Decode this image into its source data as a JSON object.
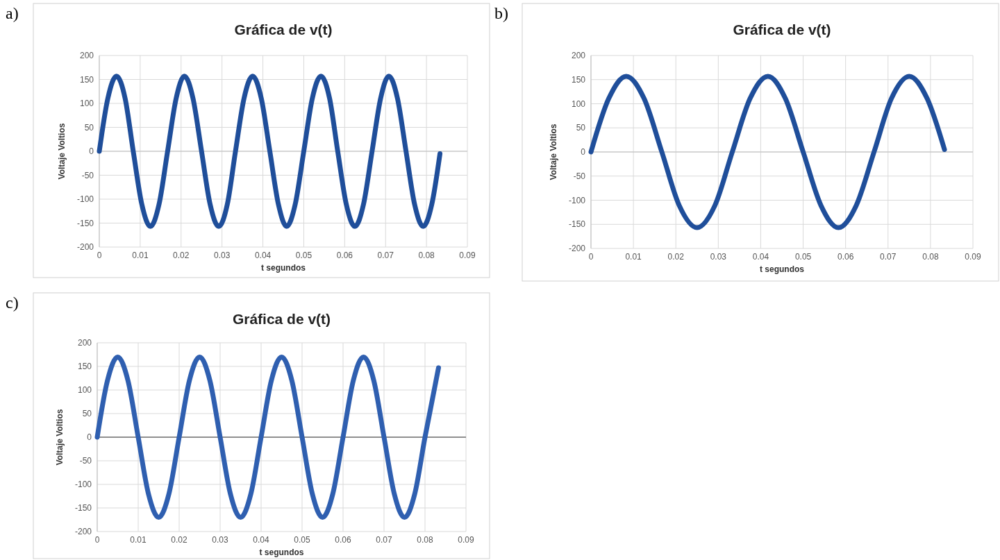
{
  "chart_data": [
    {
      "type": "line",
      "title": "Gráfica de v(t)",
      "xlabel": "t segundos",
      "ylabel": "Voltaje Voltios",
      "annotations": [
        "a)"
      ],
      "xlim": [
        0,
        0.09
      ],
      "xticks": [
        0,
        0.01,
        0.02,
        0.03,
        0.04,
        0.05,
        0.06,
        0.07,
        0.08,
        0.09
      ],
      "ylim": [
        -200,
        200
      ],
      "yticks": [
        -200,
        -150,
        -100,
        -50,
        0,
        50,
        100,
        150,
        200
      ],
      "grid": true,
      "marker": "none",
      "line_style": "solid",
      "series": [
        {
          "color": "#1f4e9a",
          "x": [
            0,
            0.0021,
            0.0042,
            0.0063,
            0.0083,
            0.0104,
            0.0125,
            0.0146,
            0.0167,
            0.0188,
            0.0208,
            0.0229,
            0.025,
            0.0271,
            0.0292,
            0.0313,
            0.0333,
            0.0354,
            0.0375,
            0.0396,
            0.0417,
            0.0438,
            0.0458,
            0.0479,
            0.05,
            0.0521,
            0.0542,
            0.0563,
            0.0583,
            0.0604,
            0.0625,
            0.0646,
            0.0667,
            0.0688,
            0.0708,
            0.0729,
            0.075,
            0.0771,
            0.0792,
            0.0813,
            0.0833
          ],
          "values": [
            0,
            111,
            157,
            111,
            0,
            -111,
            -157,
            -111,
            0,
            111,
            157,
            111,
            0,
            -111,
            -157,
            -111,
            0,
            111,
            157,
            111,
            0,
            -111,
            -157,
            -111,
            0,
            111,
            157,
            111,
            0,
            -111,
            -157,
            -111,
            0,
            111,
            157,
            111,
            0,
            -111,
            -157,
            -111,
            -5
          ]
        }
      ]
    },
    {
      "type": "line",
      "title": "Gráfica de v(t)",
      "xlabel": "t segundos",
      "ylabel": "Voltaje Voltios",
      "annotations": [
        "b)"
      ],
      "xlim": [
        0,
        0.09
      ],
      "xticks": [
        0,
        0.01,
        0.02,
        0.03,
        0.04,
        0.05,
        0.06,
        0.07,
        0.08,
        0.09
      ],
      "ylim": [
        -200,
        200
      ],
      "yticks": [
        -200,
        -150,
        -100,
        -50,
        0,
        50,
        100,
        150,
        200
      ],
      "grid": true,
      "marker": "none",
      "line_style": "solid",
      "series": [
        {
          "color": "#1f4e9a",
          "x": [
            0,
            0.0042,
            0.0083,
            0.0125,
            0.0167,
            0.0208,
            0.025,
            0.0292,
            0.0333,
            0.0375,
            0.0417,
            0.0458,
            0.05,
            0.0542,
            0.0583,
            0.0625,
            0.0667,
            0.0708,
            0.075,
            0.0792,
            0.0833
          ],
          "values": [
            0,
            111,
            157,
            111,
            0,
            -111,
            -157,
            -111,
            0,
            111,
            157,
            111,
            0,
            -111,
            -157,
            -111,
            0,
            111,
            157,
            111,
            5
          ]
        }
      ]
    },
    {
      "type": "line",
      "title": "Gráfica de v(t)",
      "xlabel": "t segundos",
      "ylabel": "Voltaje Voltios",
      "annotations": [
        "c)"
      ],
      "xlim": [
        0,
        0.09
      ],
      "xticks": [
        0,
        0.01,
        0.02,
        0.03,
        0.04,
        0.05,
        0.06,
        0.07,
        0.08,
        0.09
      ],
      "ylim": [
        -200,
        200
      ],
      "yticks": [
        -200,
        -150,
        -100,
        -50,
        0,
        50,
        100,
        150,
        200
      ],
      "grid": true,
      "marker": "none",
      "line_style": "solid",
      "series": [
        {
          "color": "#2f5fb0",
          "x": [
            0,
            0.0025,
            0.005,
            0.0075,
            0.01,
            0.0125,
            0.015,
            0.0175,
            0.02,
            0.0225,
            0.025,
            0.0275,
            0.03,
            0.0325,
            0.035,
            0.0375,
            0.04,
            0.0425,
            0.045,
            0.0475,
            0.05,
            0.0525,
            0.055,
            0.0575,
            0.06,
            0.0625,
            0.065,
            0.0675,
            0.07,
            0.0725,
            0.075,
            0.0775,
            0.08,
            0.0833
          ],
          "values": [
            0,
            120,
            170,
            120,
            0,
            -120,
            -170,
            -120,
            0,
            120,
            170,
            120,
            0,
            -120,
            -170,
            -120,
            0,
            120,
            170,
            120,
            0,
            -120,
            -170,
            -120,
            0,
            120,
            170,
            120,
            0,
            -120,
            -170,
            -120,
            0,
            147
          ]
        }
      ]
    }
  ]
}
